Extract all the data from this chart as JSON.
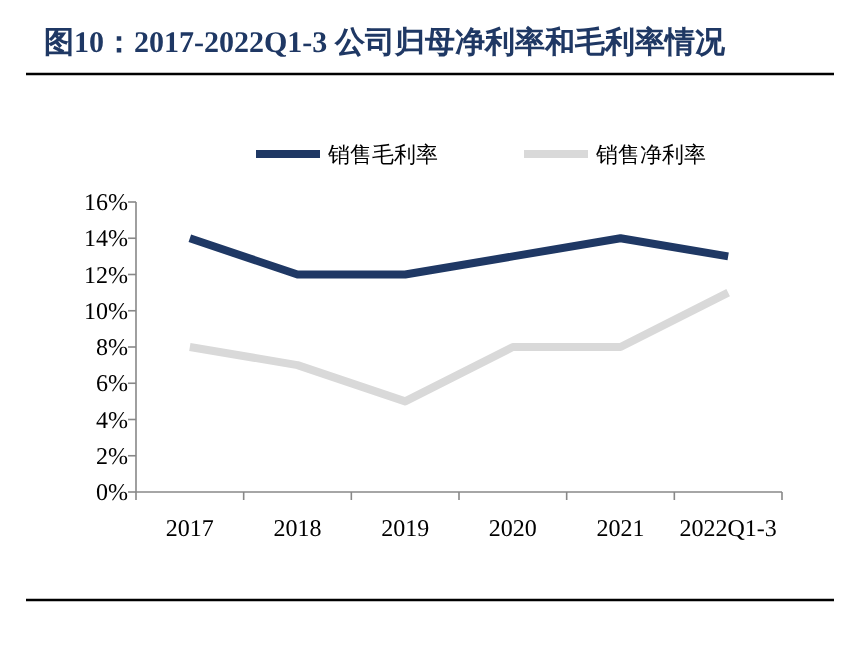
{
  "chart_data": {
    "type": "line",
    "title": "图10：2017-2022Q1-3 公司归母净利率和毛利率情况",
    "categories": [
      "2017",
      "2018",
      "2019",
      "2020",
      "2021",
      "2022Q1-3"
    ],
    "series": [
      {
        "name": "销售毛利率",
        "color": "#1f3864",
        "values": [
          14,
          12,
          12,
          13,
          14,
          13
        ]
      },
      {
        "name": "销售净利率",
        "color": "#d9d9d9",
        "values": [
          8,
          7,
          5,
          8,
          8,
          11
        ]
      }
    ],
    "ylim": [
      0,
      16
    ],
    "yticks": [
      {
        "value": 0,
        "label": "0%"
      },
      {
        "value": 2,
        "label": "2%"
      },
      {
        "value": 4,
        "label": "4%"
      },
      {
        "value": 6,
        "label": "6%"
      },
      {
        "value": 8,
        "label": "8%"
      },
      {
        "value": 10,
        "label": "10%"
      },
      {
        "value": 12,
        "label": "12%"
      },
      {
        "value": 14,
        "label": "14%"
      },
      {
        "value": 16,
        "label": "16%"
      }
    ],
    "legend": "top",
    "grid": false,
    "marker": "none",
    "line_style": "solid"
  }
}
